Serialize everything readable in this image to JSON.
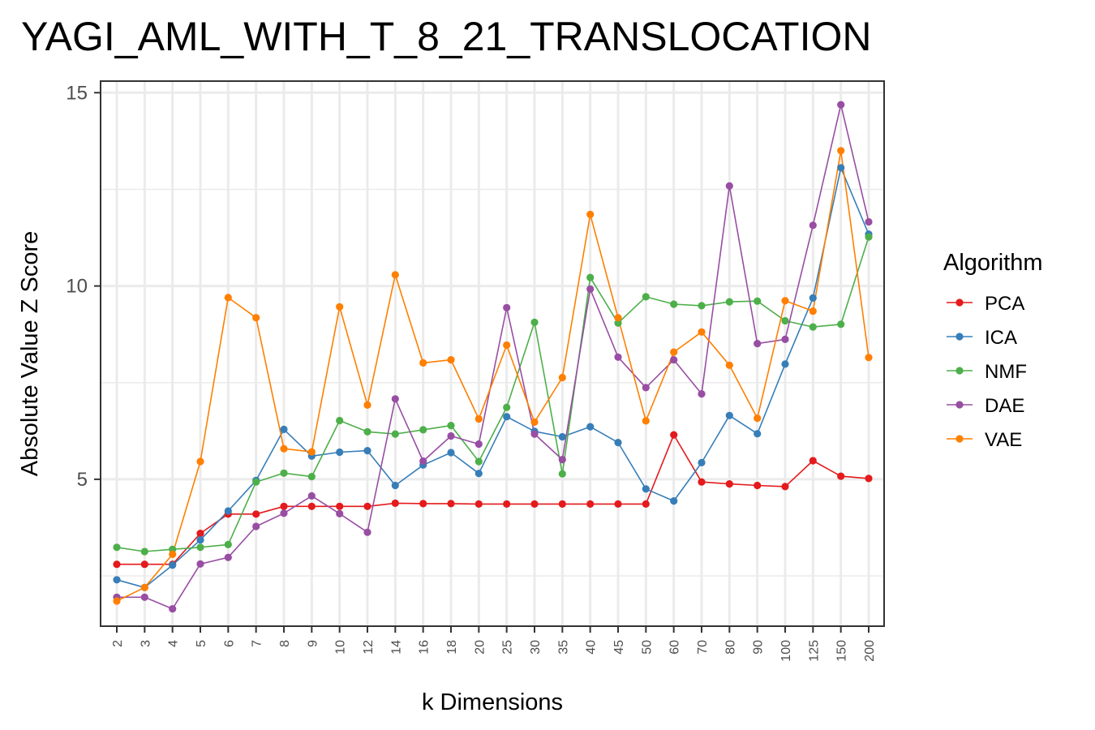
{
  "chart_data": {
    "type": "line",
    "title": "YAGI_AML_WITH_T_8_21_TRANSLOCATION",
    "xlabel": "k Dimensions",
    "ylabel": "Absolute Value Z Score",
    "categories": [
      "2",
      "3",
      "4",
      "5",
      "6",
      "7",
      "8",
      "9",
      "10",
      "12",
      "14",
      "16",
      "18",
      "20",
      "25",
      "30",
      "35",
      "40",
      "45",
      "50",
      "60",
      "70",
      "80",
      "90",
      "100",
      "125",
      "150",
      "200"
    ],
    "yticks": [
      5,
      10,
      15
    ],
    "ylim": [
      1.2,
      15.3
    ],
    "grid": true,
    "legend": {
      "title": "Algorithm",
      "position": "right"
    },
    "series": [
      {
        "name": "PCA",
        "color": "#e41a1c",
        "values": [
          2.8,
          2.8,
          2.8,
          3.6,
          4.1,
          4.1,
          4.3,
          4.3,
          4.3,
          4.3,
          4.38,
          4.37,
          4.37,
          4.36,
          4.36,
          4.36,
          4.36,
          4.36,
          4.36,
          4.36,
          6.15,
          4.93,
          4.88,
          4.84,
          4.81,
          5.48,
          5.08,
          5.02
        ]
      },
      {
        "name": "ICA",
        "color": "#377eb8",
        "values": [
          2.4,
          2.2,
          2.78,
          3.43,
          4.18,
          4.97,
          6.29,
          5.6,
          5.7,
          5.74,
          4.84,
          5.37,
          5.69,
          5.15,
          6.62,
          6.24,
          6.1,
          6.36,
          5.95,
          4.75,
          4.44,
          5.43,
          6.65,
          6.18,
          7.98,
          9.69,
          13.06,
          11.34
        ]
      },
      {
        "name": "NMF",
        "color": "#4daf4a",
        "values": [
          3.24,
          3.13,
          3.19,
          3.24,
          3.31,
          4.93,
          5.16,
          5.07,
          6.52,
          6.23,
          6.17,
          6.28,
          6.39,
          5.46,
          6.86,
          9.06,
          5.14,
          10.22,
          9.04,
          9.72,
          9.53,
          9.49,
          9.59,
          9.61,
          9.1,
          8.94,
          9.01,
          11.27
        ]
      },
      {
        "name": "DAE",
        "color": "#984ea3",
        "values": [
          1.95,
          1.95,
          1.65,
          2.81,
          2.98,
          3.78,
          4.12,
          4.57,
          4.11,
          3.63,
          7.08,
          5.47,
          6.12,
          5.91,
          9.44,
          6.17,
          5.51,
          9.92,
          8.16,
          7.37,
          8.09,
          7.21,
          12.59,
          8.51,
          8.62,
          11.57,
          14.69,
          11.66
        ]
      },
      {
        "name": "VAE",
        "color": "#ff7f00",
        "values": [
          1.85,
          2.2,
          3.06,
          5.46,
          9.7,
          9.18,
          5.79,
          5.71,
          9.46,
          6.92,
          10.29,
          8.01,
          8.09,
          6.56,
          8.47,
          6.48,
          7.63,
          11.85,
          9.18,
          6.51,
          8.29,
          8.81,
          7.95,
          6.58,
          9.62,
          9.35,
          13.5,
          8.15
        ]
      }
    ]
  }
}
